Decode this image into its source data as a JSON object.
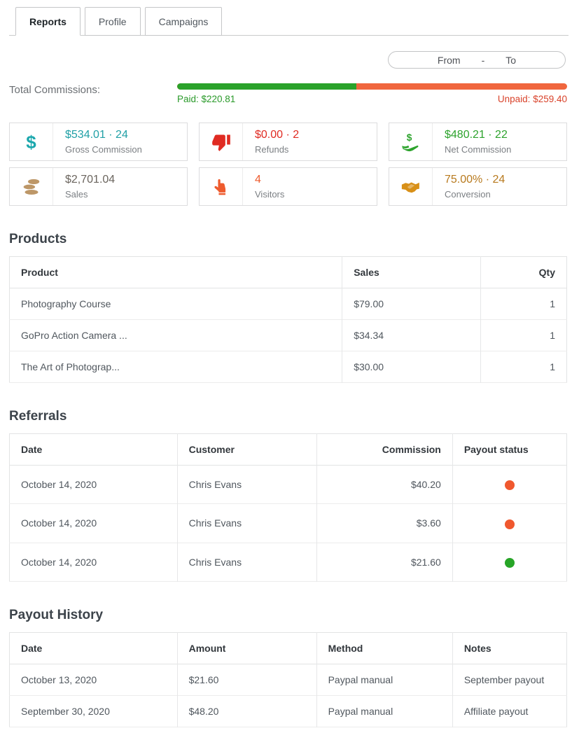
{
  "tabs": [
    {
      "label": "Reports",
      "active": true
    },
    {
      "label": "Profile",
      "active": false
    },
    {
      "label": "Campaigns",
      "active": false
    }
  ],
  "date_range": {
    "from_label": "From",
    "separator": "-",
    "to_label": "To"
  },
  "commissions": {
    "label": "Total Commissions:",
    "paid_text": "Paid: $220.81",
    "unpaid_text": "Unpaid: $259.40",
    "paid_percent": 46,
    "paid_color": "#2aa22a",
    "unpaid_color": "#f0663e",
    "paid_text_color": "#2a9a2a",
    "unpaid_text_color": "#d9432b"
  },
  "stats": [
    {
      "icon": "dollar-icon",
      "value": "$534.01 · 24",
      "label": "Gross Commission",
      "value_color": "#21a0a6",
      "icon_color": "#1ba7ad"
    },
    {
      "icon": "thumbs-down-icon",
      "value": "$0.00 · 2",
      "label": "Refunds",
      "value_color": "#e02b22",
      "icon_color": "#e02b22"
    },
    {
      "icon": "hand-money-icon",
      "value": "$480.21 · 22",
      "label": "Net Commission",
      "value_color": "#2da32d",
      "icon_color": "#2da32d"
    },
    {
      "icon": "coins-icon",
      "value": "$2,701.04",
      "label": "Sales",
      "value_color": "#6b655e",
      "icon_color": "#bd9768"
    },
    {
      "icon": "finger-up-icon",
      "value": "4",
      "label": "Visitors",
      "value_color": "#ee5b2e",
      "icon_color": "#ee5b2e"
    },
    {
      "icon": "handshake-icon",
      "value": "75.00% · 24",
      "label": "Conversion",
      "value_color": "#b87a1e",
      "icon_color": "#d89018"
    }
  ],
  "products": {
    "title": "Products",
    "headers": [
      "Product",
      "Sales",
      "Qty"
    ],
    "rows": [
      [
        "Photography Course",
        "$79.00",
        "1"
      ],
      [
        "GoPro Action Camera ...",
        "$34.34",
        "1"
      ],
      [
        "The Art of Photograp...",
        "$30.00",
        "1"
      ]
    ]
  },
  "referrals": {
    "title": "Referrals",
    "headers": [
      "Date",
      "Customer",
      "Commission",
      "Payout status"
    ],
    "rows": [
      {
        "date": "October 14, 2020",
        "customer": "Chris Evans",
        "commission": "$40.20",
        "status_color": "#f0582e"
      },
      {
        "date": "October 14, 2020",
        "customer": "Chris Evans",
        "commission": "$3.60",
        "status_color": "#f0582e"
      },
      {
        "date": "October 14, 2020",
        "customer": "Chris Evans",
        "commission": "$21.60",
        "status_color": "#27a527"
      }
    ]
  },
  "payout_history": {
    "title": "Payout History",
    "headers": [
      "Date",
      "Amount",
      "Method",
      "Notes"
    ],
    "rows": [
      [
        "October 13, 2020",
        "$21.60",
        "Paypal manual",
        "September payout"
      ],
      [
        "September 30, 2020",
        "$48.20",
        "Paypal manual",
        "Affiliate payout"
      ]
    ]
  }
}
